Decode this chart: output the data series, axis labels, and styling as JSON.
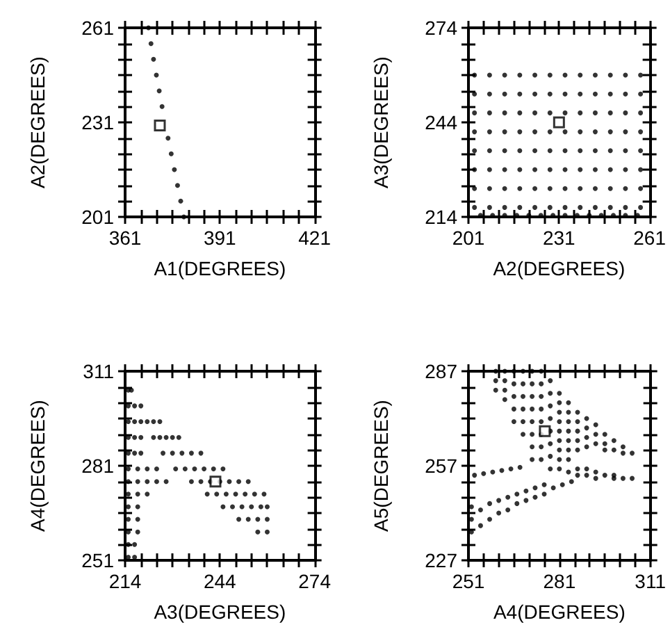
{
  "chart_data": [
    {
      "type": "scatter",
      "xlabel": "A1(DEGREES)",
      "ylabel": "A2(DEGREES)",
      "xlim": [
        361,
        421
      ],
      "ylim": [
        201,
        261
      ],
      "xticks": [
        361,
        {
          "value": 366,
          "label": null
        },
        {
          "value": 371,
          "label": null
        },
        {
          "value": 376,
          "label": null
        },
        {
          "value": 381,
          "label": null
        },
        {
          "value": 386,
          "label": null
        },
        391,
        {
          "value": 396,
          "label": null
        },
        {
          "value": 401,
          "label": null
        },
        {
          "value": 406,
          "label": null
        },
        {
          "value": 411,
          "label": null
        },
        {
          "value": 416,
          "label": null
        },
        421
      ],
      "yticks": [
        201,
        {
          "value": 206,
          "label": null
        },
        {
          "value": 211,
          "label": null
        },
        {
          "value": 216,
          "label": null
        },
        {
          "value": 221,
          "label": null
        },
        {
          "value": 226,
          "label": null
        },
        231,
        {
          "value": 236,
          "label": null
        },
        {
          "value": 241,
          "label": null
        },
        {
          "value": 246,
          "label": null
        },
        {
          "value": 251,
          "label": null
        },
        {
          "value": 256,
          "label": null
        },
        261
      ],
      "series": [
        {
          "marker": "circle",
          "color": "#000000",
          "x": [
            368.4,
            369.2,
            370.0,
            370.9,
            371.8,
            372.7,
            373.6,
            374.6,
            375.6,
            376.6,
            377.6,
            378.6,
            379.6
          ],
          "values": [
            261,
            256,
            251,
            246,
            241,
            236,
            null,
            226,
            221,
            216,
            211,
            206,
            201
          ]
        },
        {
          "marker": "square",
          "color": "#000000",
          "x": [
            372
          ],
          "values": [
            230
          ]
        }
      ]
    },
    {
      "type": "scatter",
      "xlabel": "A2(DEGREES)",
      "ylabel": "A3(DEGREES)",
      "xlim": [
        201,
        261
      ],
      "ylim": [
        214,
        274
      ],
      "xticks": [
        201,
        {
          "value": 206,
          "label": null
        },
        {
          "value": 211,
          "label": null
        },
        {
          "value": 216,
          "label": null
        },
        {
          "value": 221,
          "label": null
        },
        {
          "value": 226,
          "label": null
        },
        231,
        {
          "value": 236,
          "label": null
        },
        {
          "value": 241,
          "label": null
        },
        {
          "value": 246,
          "label": null
        },
        {
          "value": 251,
          "label": null
        },
        {
          "value": 256,
          "label": null
        },
        261
      ],
      "yticks": [
        214,
        {
          "value": 219,
          "label": null
        },
        {
          "value": 224,
          "label": null
        },
        {
          "value": 229,
          "label": null
        },
        {
          "value": 234,
          "label": null
        },
        {
          "value": 239,
          "label": null
        },
        244,
        {
          "value": 249,
          "label": null
        },
        {
          "value": 254,
          "label": null
        },
        {
          "value": 259,
          "label": null
        },
        {
          "value": 264,
          "label": null
        },
        {
          "value": 269,
          "label": null
        },
        274
      ],
      "series": [
        {
          "marker": "circle",
          "color": "#000000",
          "x": [
            203,
            208,
            213,
            218,
            223,
            228,
            233,
            238,
            243,
            248,
            253,
            258,
            203,
            208,
            213,
            218,
            223,
            228,
            233,
            238,
            243,
            248,
            253,
            258,
            203,
            208,
            213,
            218,
            223,
            228,
            233,
            238,
            243,
            248,
            253,
            258,
            203,
            208,
            213,
            218,
            223,
            228,
            233,
            238,
            243,
            248,
            253,
            258,
            203,
            208,
            213,
            218,
            223,
            228,
            233,
            238,
            243,
            248,
            253,
            258,
            203,
            208,
            213,
            218,
            223,
            228,
            233,
            238,
            243,
            248,
            253,
            258,
            203,
            208,
            213,
            218,
            223,
            228,
            233,
            238,
            243,
            248,
            253,
            258,
            203,
            208,
            213,
            218,
            223,
            228,
            233,
            238,
            243,
            248,
            253,
            258,
            205,
            209,
            213,
            217,
            221,
            225,
            229,
            233,
            237,
            241,
            245,
            249,
            253,
            257
          ],
          "values": [
            217,
            217,
            217,
            217,
            217,
            217,
            217,
            217,
            217,
            217,
            217,
            217,
            223,
            223,
            223,
            223,
            223,
            223,
            223,
            223,
            223,
            223,
            223,
            223,
            229,
            229,
            229,
            229,
            229,
            229,
            229,
            229,
            229,
            229,
            229,
            229,
            235,
            235,
            235,
            235,
            235,
            235,
            235,
            235,
            235,
            235,
            235,
            235,
            241,
            241,
            241,
            241,
            241,
            241,
            241,
            241,
            241,
            241,
            241,
            241,
            247,
            247,
            247,
            247,
            247,
            247,
            247,
            247,
            247,
            247,
            247,
            247,
            253,
            253,
            253,
            253,
            253,
            253,
            253,
            253,
            253,
            253,
            253,
            253,
            259,
            259,
            259,
            259,
            259,
            259,
            259,
            259,
            259,
            259,
            259,
            259,
            214.5,
            214.5,
            214.5,
            214.5,
            214.5,
            214.5,
            214.5,
            214.5,
            214.5,
            214.5,
            214.5,
            214.5,
            214.5,
            214.5
          ]
        },
        {
          "marker": "square",
          "color": "#000000",
          "x": [
            231
          ],
          "values": [
            244
          ]
        }
      ]
    },
    {
      "type": "scatter",
      "xlabel": "A3(DEGREES)",
      "ylabel": "A4(DEGREES)",
      "xlim": [
        214,
        274
      ],
      "ylim": [
        251,
        311
      ],
      "xticks": [
        214,
        {
          "value": 219,
          "label": null
        },
        {
          "value": 224,
          "label": null
        },
        {
          "value": 229,
          "label": null
        },
        {
          "value": 234,
          "label": null
        },
        {
          "value": 239,
          "label": null
        },
        244,
        {
          "value": 249,
          "label": null
        },
        {
          "value": 254,
          "label": null
        },
        {
          "value": 259,
          "label": null
        },
        {
          "value": 264,
          "label": null
        },
        {
          "value": 269,
          "label": null
        },
        274
      ],
      "yticks": [
        251,
        {
          "value": 256,
          "label": null
        },
        {
          "value": 261,
          "label": null
        },
        {
          "value": 266,
          "label": null
        },
        {
          "value": 271,
          "label": null
        },
        {
          "value": 276,
          "label": null
        },
        281,
        {
          "value": 286,
          "label": null
        },
        {
          "value": 291,
          "label": null
        },
        {
          "value": 296,
          "label": null
        },
        {
          "value": 301,
          "label": null
        },
        {
          "value": 306,
          "label": null
        },
        311
      ],
      "series": [
        {
          "marker": "circle",
          "color": "#000000",
          "x": [
            215,
            216,
            215,
            217,
            219,
            215,
            217,
            219,
            221,
            223,
            225,
            215,
            217,
            219,
            223,
            225,
            227,
            229,
            231,
            215,
            217,
            219,
            226,
            229,
            232,
            235,
            238,
            215,
            218,
            221,
            224,
            230,
            233,
            236,
            239,
            242,
            245,
            215,
            218,
            221,
            224,
            227,
            235,
            238,
            241,
            244,
            247,
            250,
            253,
            215,
            218,
            221,
            240,
            243,
            246,
            249,
            252,
            255,
            258,
            215,
            218,
            245,
            248,
            251,
            254,
            257,
            259,
            215,
            218,
            250,
            253,
            256,
            259,
            215,
            218,
            256,
            259,
            215,
            217,
            215,
            217
          ],
          "values": [
            305,
            305,
            300,
            300,
            300,
            295,
            295,
            295,
            295,
            295,
            295,
            290,
            290,
            290,
            290,
            290,
            290,
            290,
            290,
            285,
            285,
            285,
            285,
            285,
            285,
            285,
            285,
            280,
            280,
            280,
            280,
            280,
            280,
            280,
            280,
            280,
            280,
            276,
            276,
            276,
            276,
            276,
            276,
            276,
            276,
            276,
            276,
            276,
            276,
            272,
            272,
            272,
            272,
            272,
            272,
            272,
            272,
            272,
            272,
            268,
            268,
            268,
            268,
            268,
            268,
            268,
            268,
            264,
            264,
            264,
            264,
            264,
            264,
            260,
            260,
            260,
            260,
            256,
            256,
            252,
            252
          ]
        },
        {
          "marker": "square",
          "color": "#000000",
          "x": [
            242.6
          ],
          "values": [
            276
          ]
        }
      ]
    },
    {
      "type": "scatter",
      "xlabel": "A4(DEGREES)",
      "ylabel": "A5(DEGREES)",
      "xlim": [
        251,
        311
      ],
      "ylim": [
        227,
        287
      ],
      "xticks": [
        251,
        {
          "value": 256,
          "label": null
        },
        {
          "value": 261,
          "label": null
        },
        {
          "value": 266,
          "label": null
        },
        {
          "value": 271,
          "label": null
        },
        {
          "value": 276,
          "label": null
        },
        281,
        {
          "value": 286,
          "label": null
        },
        {
          "value": 291,
          "label": null
        },
        {
          "value": 296,
          "label": null
        },
        {
          "value": 301,
          "label": null
        },
        {
          "value": 306,
          "label": null
        },
        311
      ],
      "yticks": [
        227,
        {
          "value": 232,
          "label": null
        },
        {
          "value": 237,
          "label": null
        },
        {
          "value": 242,
          "label": null
        },
        {
          "value": 247,
          "label": null
        },
        {
          "value": 252,
          "label": null
        },
        257,
        {
          "value": 262,
          "label": null
        },
        {
          "value": 267,
          "label": null
        },
        {
          "value": 272,
          "label": null
        },
        {
          "value": 277,
          "label": null
        },
        {
          "value": 282,
          "label": null
        },
        287
      ],
      "series": [
        {
          "marker": "circle",
          "color": "#000000",
          "x": [
            260,
            260,
            260,
            263,
            263,
            263,
            263,
            266,
            266,
            266,
            266,
            266,
            269,
            269,
            269,
            269,
            269,
            269,
            272,
            272,
            272,
            272,
            272,
            272,
            272,
            272,
            275,
            275,
            275,
            275,
            275,
            275,
            275,
            275,
            278,
            278,
            278,
            278,
            278,
            278,
            278,
            278,
            281,
            281,
            281,
            281,
            281,
            281,
            281,
            281,
            281,
            284,
            284,
            284,
            284,
            284,
            284,
            284,
            284,
            287,
            287,
            287,
            287,
            287,
            287,
            287,
            290,
            290,
            290,
            290,
            290,
            290,
            293,
            293,
            293,
            293,
            293,
            296,
            296,
            296,
            296,
            299,
            299,
            299,
            299,
            302,
            302,
            302,
            305,
            305,
            253,
            256,
            259,
            262,
            265,
            268,
            252,
            252,
            252,
            255,
            255,
            258,
            258,
            261,
            261,
            264,
            264,
            267,
            267,
            270,
            270,
            273,
            273,
            276,
            276,
            279,
            282,
            285
          ],
          "values": [
            287,
            284,
            281,
            287,
            284,
            281,
            278,
            287,
            283,
            279,
            275,
            271,
            287,
            283,
            279,
            275,
            271,
            267,
            287,
            283,
            279,
            275,
            271,
            267,
            263,
            259,
            287,
            283,
            279,
            275,
            271,
            267,
            263,
            259,
            284,
            280,
            276,
            272,
            268,
            264,
            260,
            256,
            280,
            277,
            274,
            271,
            268,
            265,
            262,
            259,
            256,
            277,
            274,
            271,
            268,
            265,
            262,
            259,
            255,
            274,
            271,
            268,
            265,
            262,
            256,
            254,
            272,
            269,
            266,
            263,
            256,
            254,
            270,
            267,
            264,
            255,
            253,
            267,
            264,
            262,
            254,
            265,
            262,
            254,
            253,
            263,
            261,
            253,
            261,
            253,
            254,
            254.5,
            255,
            255.5,
            256,
            256.5,
            236,
            240,
            244,
            238,
            243,
            240,
            245,
            242,
            246,
            243,
            247,
            245,
            248,
            246,
            249,
            247,
            250,
            248,
            251,
            250,
            251,
            252
          ]
        },
        {
          "marker": "square",
          "color": "#000000",
          "x": [
            276.2
          ],
          "values": [
            268
          ]
        }
      ]
    }
  ]
}
